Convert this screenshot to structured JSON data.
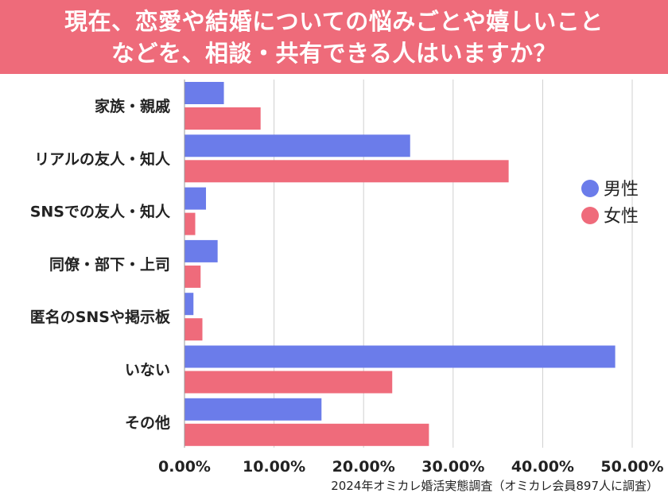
{
  "header": {
    "title_line1": "現在、恋愛や結婚についての悩みごとや嬉しいこと",
    "title_line2": "などを、相談・共有できる人はいますか？"
  },
  "source": "2024年オミカレ婚活実態調査（オミカレ会員897人に調査）",
  "colors": {
    "male": "#6b7cea",
    "female": "#ef6b7b",
    "banner": "#ee6b7a",
    "grid": "#d0d0d0"
  },
  "chart_data": {
    "type": "bar",
    "orientation": "horizontal",
    "title": "現在、恋愛や結婚についての悩みごとや嬉しいことなどを、相談・共有できる人はいますか？",
    "categories": [
      "家族・親戚",
      "リアルの友人・知人",
      "SNSでの友人・知人",
      "同僚・部下・上司",
      "匿名のSNSや掲示板",
      "いない",
      "その他"
    ],
    "series": [
      {
        "name": "男性",
        "color": "#6b7cea",
        "values": [
          4.4,
          25.2,
          2.4,
          3.7,
          1.0,
          48.1,
          15.3
        ]
      },
      {
        "name": "女性",
        "color": "#ef6b7b",
        "values": [
          8.5,
          36.2,
          1.2,
          1.8,
          2.0,
          23.2,
          27.3
        ]
      }
    ],
    "xlim": [
      0,
      50
    ],
    "xticks": [
      "0.00%",
      "10.00%",
      "20.00%",
      "30.00%",
      "40.00%",
      "50.00%"
    ],
    "grid": true,
    "legend_position": "right"
  }
}
